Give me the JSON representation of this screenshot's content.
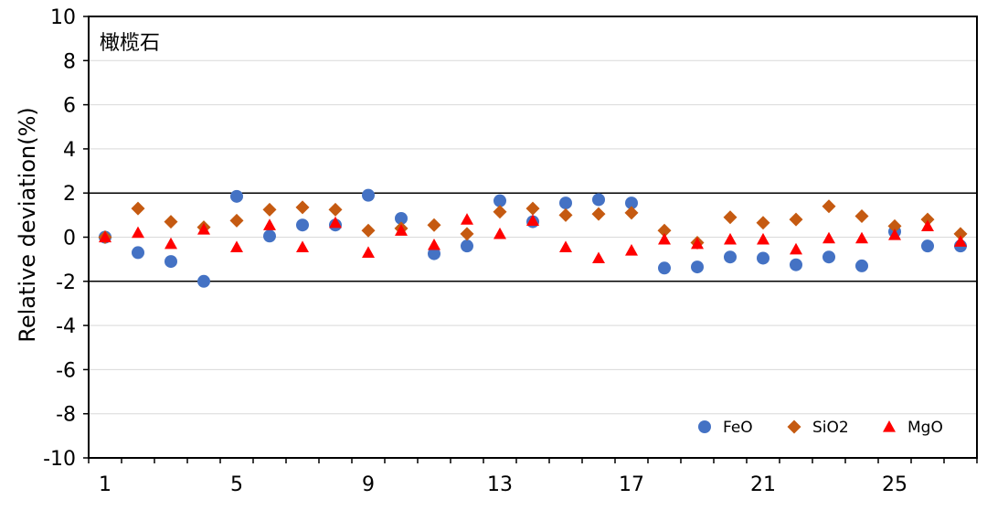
{
  "chart_data": {
    "type": "scatter",
    "title": "橄榄石",
    "xlabel": "",
    "ylabel": "Relative deviation(%)",
    "xlim": [
      0.5,
      27.5
    ],
    "ylim": [
      -10,
      10
    ],
    "x_ticks": [
      1,
      5,
      9,
      13,
      17,
      21,
      25
    ],
    "y_ticks": [
      10,
      8,
      6,
      4,
      2,
      0,
      -2,
      -4,
      -6,
      -8,
      -10
    ],
    "grid": true,
    "reference_lines": [
      2,
      -2
    ],
    "legend_position": "bottom-right",
    "x": [
      1,
      2,
      3,
      4,
      5,
      6,
      7,
      8,
      9,
      10,
      11,
      12,
      13,
      14,
      15,
      16,
      17,
      18,
      19,
      20,
      21,
      22,
      23,
      24,
      25,
      26,
      27
    ],
    "series": [
      {
        "name": "FeO",
        "marker": "circle",
        "color": "#4472C4",
        "values": [
          0.0,
          -0.7,
          -1.1,
          -2.0,
          1.85,
          0.05,
          0.55,
          0.55,
          1.9,
          0.85,
          -0.75,
          -0.4,
          1.65,
          0.7,
          1.55,
          1.7,
          1.55,
          -1.4,
          -1.35,
          -0.9,
          -0.95,
          -1.25,
          -0.9,
          -1.3,
          0.25,
          -0.4,
          -0.4
        ]
      },
      {
        "name": "SiO2",
        "marker": "diamond",
        "color": "#C55A11",
        "values": [
          0.0,
          1.3,
          0.7,
          0.45,
          0.75,
          1.25,
          1.35,
          1.25,
          0.3,
          0.4,
          0.55,
          0.15,
          1.15,
          1.3,
          1.0,
          1.05,
          1.1,
          0.3,
          -0.25,
          0.9,
          0.65,
          0.8,
          1.4,
          0.95,
          0.5,
          0.8,
          0.15
        ]
      },
      {
        "name": "MgO",
        "marker": "triangle",
        "color": "#FF0000",
        "values": [
          0.0,
          0.2,
          -0.3,
          0.35,
          -0.45,
          0.55,
          -0.45,
          0.65,
          -0.7,
          0.3,
          -0.35,
          0.8,
          0.15,
          0.75,
          -0.45,
          -0.95,
          -0.6,
          -0.1,
          -0.3,
          -0.1,
          -0.1,
          -0.55,
          -0.05,
          -0.05,
          0.1,
          0.5,
          -0.2
        ]
      }
    ]
  }
}
